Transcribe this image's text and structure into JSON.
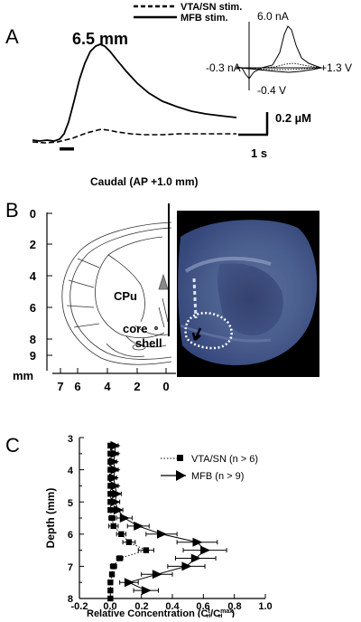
{
  "panel_a": {
    "panel_label": "A",
    "legend": [
      {
        "label": "VTA/SN stim.",
        "style": "dashed"
      },
      {
        "label": "MFB stim.",
        "style": "solid"
      }
    ],
    "depth_label": "6.5 mm",
    "scale_y_label": "0.2 µM",
    "scale_x_label": "1 s",
    "inset": {
      "top_label": "6.0 nA",
      "left_label": "-0.3 nA",
      "right_label": "+1.3 V",
      "bottom_label": "-0.4 V"
    },
    "section_label": "Caudal (AP +1.0 mm)"
  },
  "panel_b": {
    "panel_label": "B",
    "depth_ticks": [
      "0",
      "2",
      "4",
      "6",
      "8",
      "9"
    ],
    "lateral_ticks": [
      "7",
      "6",
      "4",
      "2",
      "0"
    ],
    "unit_label": "mm",
    "region_labels": {
      "cpu": "CPu",
      "core": "core",
      "shell": "shell"
    }
  },
  "panel_c": {
    "panel_label": "C",
    "chart_data": {
      "type": "scatter",
      "xlabel": "Relative Concentration (C_d^t/C_d^max)",
      "ylabel": "Depth (mm)",
      "xlim": [
        -0.2,
        1.0
      ],
      "ylim": [
        8,
        3
      ],
      "x_ticks": [
        "-0.2",
        "0.0",
        "0.2",
        "0.4",
        "0.6",
        "0.8",
        "1.0"
      ],
      "y_ticks": [
        "3",
        "4",
        "5",
        "6",
        "7",
        "8"
      ],
      "legend_position": "top-right",
      "series": [
        {
          "name": "VTA/SN (n > 6)",
          "marker": "square",
          "points": [
            {
              "y": 3.25,
              "x": 0.0,
              "xerr": 0.0
            },
            {
              "y": 3.5,
              "x": 0.0,
              "xerr": 0.0
            },
            {
              "y": 3.75,
              "x": 0.0,
              "xerr": 0.0
            },
            {
              "y": 4.0,
              "x": 0.0,
              "xerr": 0.01
            },
            {
              "y": 4.25,
              "x": 0.0,
              "xerr": 0.01
            },
            {
              "y": 4.5,
              "x": 0.0,
              "xerr": 0.01
            },
            {
              "y": 4.75,
              "x": 0.0,
              "xerr": 0.01
            },
            {
              "y": 5.0,
              "x": 0.0,
              "xerr": 0.01
            },
            {
              "y": 5.25,
              "x": 0.0,
              "xerr": 0.01
            },
            {
              "y": 5.5,
              "x": 0.01,
              "xerr": 0.02
            },
            {
              "y": 5.75,
              "x": 0.02,
              "xerr": 0.03
            },
            {
              "y": 6.0,
              "x": 0.07,
              "xerr": 0.03
            },
            {
              "y": 6.25,
              "x": 0.12,
              "xerr": 0.04
            },
            {
              "y": 6.5,
              "x": 0.23,
              "xerr": 0.05
            },
            {
              "y": 6.75,
              "x": 0.06,
              "xerr": 0.02
            },
            {
              "y": 7.0,
              "x": 0.02,
              "xerr": 0.02
            },
            {
              "y": 7.25,
              "x": 0.01,
              "xerr": 0.01
            },
            {
              "y": 7.5,
              "x": 0.0,
              "xerr": 0.0
            },
            {
              "y": 7.75,
              "x": 0.0,
              "xerr": 0.0
            },
            {
              "y": 8.0,
              "x": 0.0,
              "xerr": 0.0
            }
          ]
        },
        {
          "name": "MFB (n > 9)",
          "marker": "triangle-right",
          "points": [
            {
              "y": 3.25,
              "x": 0.03,
              "xerr": 0.02
            },
            {
              "y": 3.5,
              "x": 0.03,
              "xerr": 0.02
            },
            {
              "y": 3.75,
              "x": 0.02,
              "xerr": 0.02
            },
            {
              "y": 4.0,
              "x": 0.03,
              "xerr": 0.02
            },
            {
              "y": 4.25,
              "x": 0.02,
              "xerr": 0.02
            },
            {
              "y": 4.5,
              "x": 0.03,
              "xerr": 0.02
            },
            {
              "y": 4.75,
              "x": 0.04,
              "xerr": 0.03
            },
            {
              "y": 5.0,
              "x": 0.03,
              "xerr": 0.03
            },
            {
              "y": 5.25,
              "x": 0.05,
              "xerr": 0.03
            },
            {
              "y": 5.5,
              "x": 0.09,
              "xerr": 0.05
            },
            {
              "y": 5.75,
              "x": 0.18,
              "xerr": 0.07
            },
            {
              "y": 6.0,
              "x": 0.33,
              "xerr": 0.1
            },
            {
              "y": 6.25,
              "x": 0.56,
              "xerr": 0.13
            },
            {
              "y": 6.5,
              "x": 0.61,
              "xerr": 0.14
            },
            {
              "y": 6.75,
              "x": 0.55,
              "xerr": 0.13
            },
            {
              "y": 7.0,
              "x": 0.49,
              "xerr": 0.12
            },
            {
              "y": 7.25,
              "x": 0.3,
              "xerr": 0.1
            },
            {
              "y": 7.5,
              "x": 0.12,
              "xerr": 0.06
            },
            {
              "y": 7.75,
              "x": 0.23,
              "xerr": 0.08
            }
          ]
        }
      ]
    }
  }
}
